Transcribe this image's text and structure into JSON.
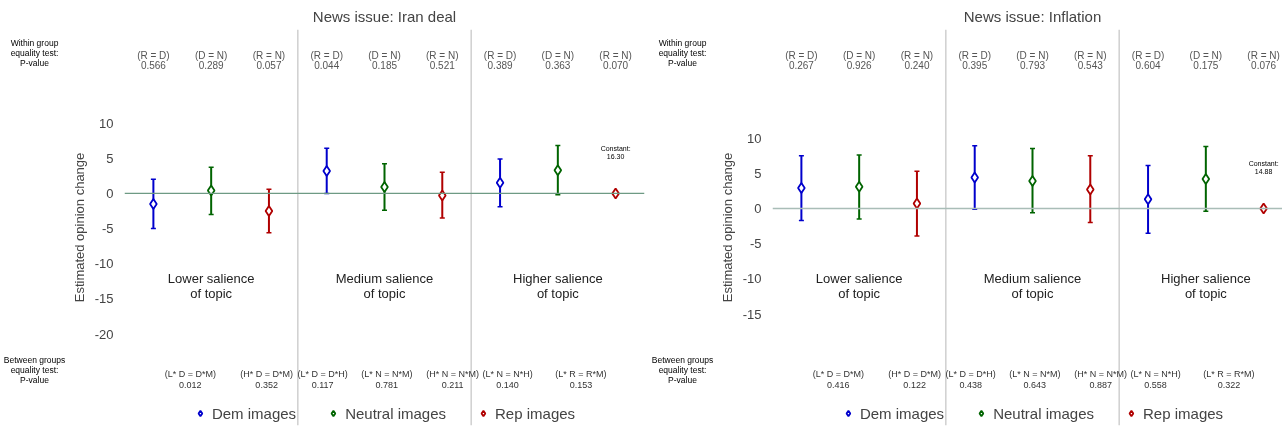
{
  "chart_data": [
    {
      "type": "scatter",
      "title": "News issue: Iran deal",
      "ylabel": "Estimated opinion change",
      "categories": [
        null,
        null,
        null,
        null,
        null,
        null,
        null,
        null,
        null
      ],
      "ylim": [
        -33,
        23.3
      ],
      "yticks": [
        10,
        5,
        0,
        -5,
        -10,
        -15,
        -20
      ],
      "tick_labels": "y",
      "grid": false,
      "marker": "diamond",
      "legend": "bottom",
      "series": [
        {
          "name": "Dem images",
          "color": "#0000cc",
          "values": [
            -1.5,
            null,
            null,
            3.2,
            null,
            null,
            1.5,
            null,
            null
          ],
          "errors": [
            [
              -5.0,
              2.0
            ],
            null,
            null,
            [
              0.0,
              6.4
            ],
            null,
            null,
            [
              -1.9,
              4.9
            ],
            null,
            null
          ]
        },
        {
          "name": "Neutral images",
          "color": "#006400",
          "values": [
            null,
            0.4,
            null,
            null,
            0.9,
            null,
            null,
            3.3,
            null
          ],
          "errors": [
            null,
            [
              -3.0,
              3.7
            ],
            null,
            null,
            [
              -2.4,
              4.2
            ],
            null,
            null,
            [
              -0.2,
              6.8
            ],
            null
          ]
        },
        {
          "name": "Rep images",
          "color": "#b00000",
          "values": [
            null,
            null,
            -2.5,
            null,
            null,
            -0.3,
            null,
            null,
            0
          ],
          "errors": [
            null,
            null,
            [
              -5.6,
              0.6
            ],
            null,
            null,
            [
              -3.5,
              3.0
            ],
            null,
            null,
            null
          ]
        }
      ],
      "ref_lines": [
        {
          "axis": "y",
          "value": 0,
          "color": "#6e9a84"
        }
      ],
      "annotations": [
        "Within group\nequality test:\nP-value",
        "(R = D)\n0.566",
        "(D = N)\n0.289",
        "(R = N)\n0.057",
        "(R = D)\n0.044",
        "(D = N)\n0.185",
        "(R = N)\n0.521",
        "(R = D)\n0.389",
        "(D = N)\n0.363",
        "(R = N)\n0.070",
        "Between groups\nequality test:\nP-value",
        "(L* D = D*M)\n0.012",
        "(H* D = D*M)\n0.352",
        "(L* D = D*H)\n0.117",
        "(L* N = N*M)\n0.781",
        "(H* N = N*M)\n0.211",
        "(L* N = N*H)\n0.140",
        "(L* R = R*M)\n0.153",
        "Lower salience\nof topic",
        "Medium salience\nof topic",
        "Higher salience\nof topic",
        "Constant:\n16.30"
      ]
    },
    {
      "type": "scatter",
      "title": "News issue: Inflation",
      "ylabel": "Estimated opinion change",
      "categories": [
        null,
        null,
        null,
        null,
        null,
        null,
        null,
        null,
        null
      ],
      "ylim": [
        -30.8,
        25.4
      ],
      "yticks": [
        10,
        5,
        0,
        -5,
        -10,
        -15
      ],
      "tick_labels": "y",
      "grid": false,
      "marker": "diamond",
      "legend": "bottom",
      "series": [
        {
          "name": "Dem images",
          "color": "#0000cc",
          "values": [
            2.9,
            null,
            null,
            4.4,
            null,
            null,
            1.3,
            null,
            null
          ],
          "errors": [
            [
              -1.7,
              7.5
            ],
            null,
            null,
            [
              -0.1,
              8.9
            ],
            null,
            null,
            [
              -3.5,
              6.1
            ],
            null,
            null
          ]
        },
        {
          "name": "Neutral images",
          "color": "#006400",
          "values": [
            null,
            3.1,
            null,
            null,
            3.9,
            null,
            null,
            4.2,
            null
          ],
          "errors": [
            null,
            [
              -1.5,
              7.6
            ],
            null,
            null,
            [
              -0.6,
              8.5
            ],
            null,
            null,
            [
              -0.4,
              8.8
            ],
            null
          ]
        },
        {
          "name": "Rep images",
          "color": "#b00000",
          "values": [
            null,
            null,
            0.7,
            null,
            null,
            2.7,
            null,
            null,
            0
          ],
          "errors": [
            null,
            null,
            [
              -3.9,
              5.3
            ],
            null,
            null,
            [
              -2.0,
              7.5
            ],
            null,
            null,
            null
          ]
        }
      ],
      "ref_lines": [
        {
          "axis": "y",
          "value": 0,
          "color": "#a9bdb7"
        }
      ],
      "annotations": [
        "Within group\nequality test:\nP-value",
        "(R = D)\n0.267",
        "(D = N)\n0.926",
        "(R = N)\n0.240",
        "(R = D)\n0.395",
        "(D = N)\n0.793",
        "(R = N)\n0.543",
        "(R = D)\n0.604",
        "(D = N)\n0.175",
        "(R = N)\n0.076",
        "Between groups\nequality test:\nP-value",
        "(L* D = D*M)\n0.416",
        "(H* D = D*M)\n0.122",
        "(L* D = D*H)\n0.438",
        "(L* N = N*M)\n0.643",
        "(H* N = N*M)\n0.887",
        "(L* N = N*H)\n0.558",
        "(L* R = R*M)\n0.322",
        "Lower salience\nof topic",
        "Medium salience\nof topic",
        "Higher salience\nof topic",
        "Constant:\n14.88"
      ]
    }
  ]
}
